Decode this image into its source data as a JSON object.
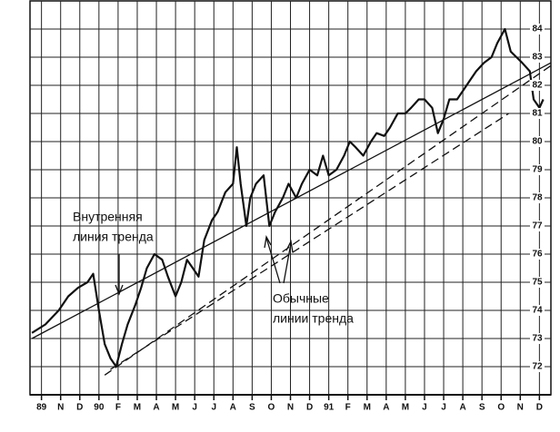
{
  "chart_data": {
    "type": "line",
    "x": [
      -0.5,
      0.2,
      0.9,
      1.4,
      1.9,
      2.4,
      2.7,
      3.0,
      3.3,
      3.6,
      3.9,
      4.2,
      4.5,
      4.9,
      5.2,
      5.5,
      5.9,
      6.3,
      6.6,
      7.0,
      7.3,
      7.6,
      7.9,
      8.2,
      8.5,
      8.9,
      9.2,
      9.6,
      10.0,
      10.2,
      10.4,
      10.7,
      10.9,
      11.2,
      11.6,
      11.9,
      12.2,
      12.6,
      12.9,
      13.3,
      13.6,
      14.0,
      14.4,
      14.7,
      15.0,
      15.4,
      15.8,
      16.1,
      16.4,
      16.8,
      17.2,
      17.5,
      17.9,
      18.2,
      18.6,
      19.0,
      19.3,
      19.7,
      20.0,
      20.4,
      20.7,
      21.0,
      21.3,
      21.7,
      22.0,
      22.4,
      22.7,
      23.1,
      23.5,
      23.8,
      24.2,
      24.5,
      24.8,
      25.1,
      25.5,
      25.7,
      26.0,
      26.2
    ],
    "series": [
      {
        "color": "#111111",
        "values": [
          73.2,
          73.5,
          74.0,
          74.5,
          74.8,
          75.0,
          75.3,
          74.0,
          72.8,
          72.3,
          72.0,
          72.8,
          73.5,
          74.2,
          74.8,
          75.5,
          76.0,
          75.8,
          75.2,
          74.5,
          75.0,
          75.8,
          75.5,
          75.2,
          76.5,
          77.2,
          77.5,
          78.2,
          78.5,
          79.8,
          78.5,
          77.0,
          78.0,
          78.5,
          78.8,
          77.0,
          77.5,
          78.0,
          78.5,
          78.0,
          78.5,
          79.0,
          78.8,
          79.5,
          78.8,
          79.0,
          79.5,
          80.0,
          79.8,
          79.5,
          80.0,
          80.3,
          80.2,
          80.5,
          81.0,
          81.0,
          81.2,
          81.5,
          81.5,
          81.2,
          80.3,
          80.8,
          81.5,
          81.5,
          81.8,
          82.2,
          82.5,
          82.8,
          83.0,
          83.5,
          84.0,
          83.2,
          83.0,
          82.8,
          82.5,
          81.5,
          81.2,
          81.5
        ]
      }
    ],
    "trend_lines": [
      {
        "style": "solid",
        "x": [
          -0.5,
          26.6
        ],
        "y": [
          73.0,
          82.8
        ]
      },
      {
        "style": "dashed",
        "x": [
          3.3,
          26.6
        ],
        "y": [
          71.7,
          82.7
        ]
      },
      {
        "style": "dashed",
        "x": [
          3.6,
          24.4
        ],
        "y": [
          71.9,
          81.0
        ]
      }
    ],
    "annotations": [
      {
        "lines": [
          "Внутренняя",
          "линия тренда"
        ]
      },
      {
        "lines": [
          "Обычные",
          "линии тренда"
        ]
      }
    ],
    "xlim": [
      -0.6,
      26.6
    ],
    "ylim": [
      71,
      85
    ],
    "xticks": [
      {
        "value": 0,
        "label": "89"
      },
      {
        "value": 1,
        "label": "N"
      },
      {
        "value": 2,
        "label": "D"
      },
      {
        "value": 3,
        "label": "90"
      },
      {
        "value": 4,
        "label": "F"
      },
      {
        "value": 5,
        "label": "M"
      },
      {
        "value": 6,
        "label": "A"
      },
      {
        "value": 7,
        "label": "M"
      },
      {
        "value": 8,
        "label": "J"
      },
      {
        "value": 9,
        "label": "J"
      },
      {
        "value": 10,
        "label": "A"
      },
      {
        "value": 11,
        "label": "S"
      },
      {
        "value": 12,
        "label": "O"
      },
      {
        "value": 13,
        "label": "N"
      },
      {
        "value": 14,
        "label": "D"
      },
      {
        "value": 15,
        "label": "91"
      },
      {
        "value": 16,
        "label": "F"
      },
      {
        "value": 17,
        "label": "M"
      },
      {
        "value": 18,
        "label": "A"
      },
      {
        "value": 19,
        "label": "M"
      },
      {
        "value": 20,
        "label": "J"
      },
      {
        "value": 21,
        "label": "J"
      },
      {
        "value": 22,
        "label": "A"
      },
      {
        "value": 23,
        "label": "S"
      },
      {
        "value": 24,
        "label": "O"
      },
      {
        "value": 25,
        "label": "N"
      },
      {
        "value": 26,
        "label": "D"
      }
    ],
    "yticks": [
      72,
      73,
      74,
      75,
      76,
      77,
      78,
      79,
      80,
      81,
      82,
      83,
      84
    ],
    "grid": true
  }
}
